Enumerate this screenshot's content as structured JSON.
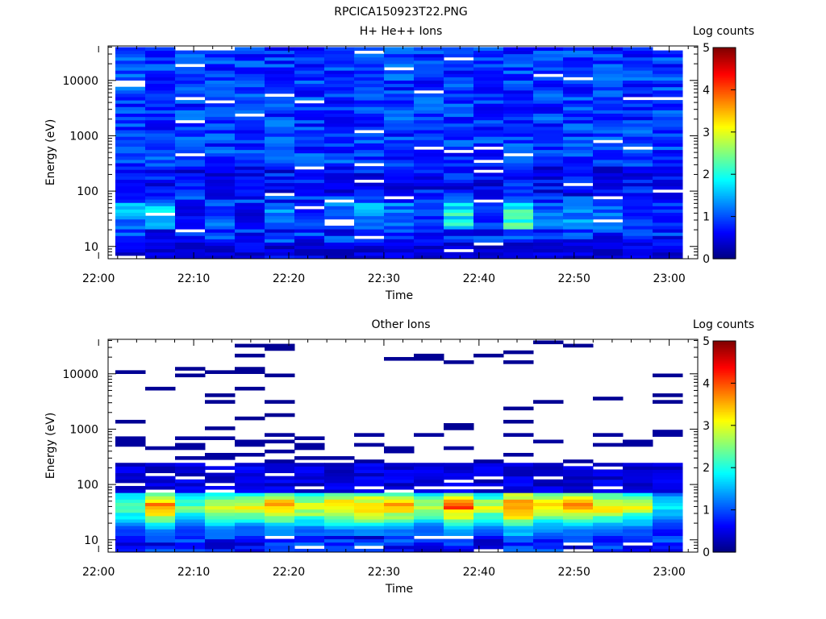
{
  "figure_title": "RPCICA150923T22.PNG",
  "chart_data": [
    {
      "type": "heatmap",
      "title": "H+ He++ Ions",
      "xlabel": "Time",
      "ylabel": "Energy (eV)",
      "y_scale": "log",
      "ylim": [
        6,
        42000
      ],
      "x_range": [
        "22:01",
        "23:03"
      ],
      "x_ticks": [
        "22:00",
        "22:10",
        "22:20",
        "22:30",
        "22:40",
        "22:50",
        "23:00"
      ],
      "y_ticks": [
        "10",
        "100",
        "1000",
        "10000"
      ],
      "colorbar": {
        "label": "Log counts",
        "range": [
          0,
          5
        ],
        "ticks": [
          "0",
          "1",
          "2",
          "3",
          "4",
          "5"
        ]
      },
      "time_columns": [
        "22:01",
        "22:04",
        "22:07",
        "22:11",
        "22:14",
        "22:17",
        "22:20",
        "22:24",
        "22:27",
        "22:30",
        "22:33",
        "22:37",
        "22:40",
        "22:43",
        "22:46",
        "22:50",
        "22:53",
        "22:56",
        "23:00"
      ],
      "dominant_levels_low_energy": [
        1.6,
        2.0,
        0.7,
        1.2,
        0.6,
        1.4,
        1.0,
        1.3,
        1.7,
        1.4,
        1.0,
        2.1,
        1.0,
        2.5,
        1.3,
        1.5,
        1.3,
        1.0,
        1.0
      ],
      "background_level": 0.9
    },
    {
      "type": "heatmap",
      "title": "Other Ions",
      "xlabel": "Time",
      "ylabel": "Energy (eV)",
      "y_scale": "log",
      "ylim": [
        6,
        42000
      ],
      "x_range": [
        "22:01",
        "23:03"
      ],
      "x_ticks": [
        "22:00",
        "22:10",
        "22:20",
        "22:30",
        "22:40",
        "22:50",
        "23:00"
      ],
      "y_ticks": [
        "10",
        "100",
        "1000",
        "10000"
      ],
      "colorbar": {
        "label": "Log counts",
        "range": [
          0,
          5
        ],
        "ticks": [
          "0",
          "1",
          "2",
          "3",
          "4",
          "5"
        ]
      },
      "time_columns": [
        "22:01",
        "22:04",
        "22:07",
        "22:11",
        "22:14",
        "22:17",
        "22:20",
        "22:24",
        "22:27",
        "22:30",
        "22:33",
        "22:37",
        "22:40",
        "22:43",
        "22:46",
        "22:50",
        "22:53",
        "22:56",
        "23:00"
      ],
      "peak_energy_eV": 40,
      "peak_levels": [
        2.5,
        3.8,
        2.5,
        3.3,
        3.1,
        3.8,
        3.3,
        3.6,
        3.9,
        3.8,
        3.0,
        4.1,
        3.0,
        4.3,
        3.5,
        3.8,
        3.4,
        3.0,
        2.0
      ]
    }
  ]
}
